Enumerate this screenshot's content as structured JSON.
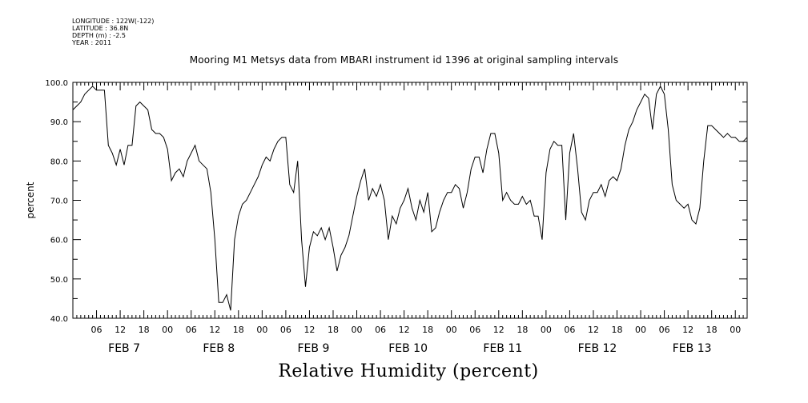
{
  "meta": {
    "longitude": "LONGITUDE : 122W(-122)",
    "latitude": "LATITUDE : 36.8N",
    "depth": "DEPTH (m) : -2.5",
    "year": "YEAR : 2011"
  },
  "chart_data": {
    "type": "line",
    "title": "Mooring M1 Metsys data from MBARI instrument id 1396 at original sampling intervals",
    "xlabel": "Relative Humidity (percent)",
    "ylabel": "percent",
    "ylim": [
      40,
      100
    ],
    "yticks": [
      40,
      50,
      60,
      70,
      80,
      90,
      100
    ],
    "xlim_hours": [
      0,
      171
    ],
    "hour_tick_labels": [
      "06",
      "12",
      "18",
      "00",
      "06",
      "12",
      "18",
      "00",
      "06",
      "12",
      "18",
      "00",
      "06",
      "12",
      "18",
      "00",
      "06",
      "12",
      "18",
      "00",
      "06",
      "12",
      "18",
      "00",
      "06",
      "12",
      "18",
      "00"
    ],
    "day_labels": [
      "FEB  7",
      "FEB  8",
      "FEB  9",
      "FEB 10",
      "FEB 11",
      "FEB 12",
      "FEB 13"
    ],
    "grid": false,
    "series": [
      {
        "color": "#000000",
        "x": [
          0,
          1,
          2,
          3,
          4,
          5,
          6,
          7,
          8,
          9,
          10,
          11,
          12,
          13,
          14,
          15,
          16,
          17,
          18,
          19,
          20,
          21,
          22,
          23,
          24,
          25,
          26,
          27,
          28,
          29,
          30,
          31,
          32,
          33,
          34,
          35,
          36,
          37,
          38,
          39,
          40,
          41,
          42,
          43,
          44,
          45,
          46,
          47,
          48,
          49,
          50,
          51,
          52,
          53,
          54,
          55,
          56,
          57,
          58,
          59,
          60,
          61,
          62,
          63,
          64,
          65,
          66,
          67,
          68,
          69,
          70,
          71,
          72,
          73,
          74,
          75,
          76,
          77,
          78,
          79,
          80,
          81,
          82,
          83,
          84,
          85,
          86,
          87,
          88,
          89,
          90,
          91,
          92,
          93,
          94,
          95,
          96,
          97,
          98,
          99,
          100,
          101,
          102,
          103,
          104,
          105,
          106,
          107,
          108,
          109,
          110,
          111,
          112,
          113,
          114,
          115,
          116,
          117,
          118,
          119,
          120,
          121,
          122,
          123,
          124,
          125,
          126,
          127,
          128,
          129,
          130,
          131,
          132,
          133,
          134,
          135,
          136,
          137,
          138,
          139,
          140,
          141,
          142,
          143,
          144,
          145,
          146,
          147,
          148,
          149,
          150,
          151,
          152,
          153,
          154,
          155,
          156,
          157,
          158,
          159,
          160,
          161,
          162,
          163,
          164,
          165,
          166,
          167,
          168,
          169,
          170,
          171
        ],
        "y": [
          93,
          94,
          95,
          97,
          98,
          99,
          98,
          98,
          98,
          84,
          82,
          79,
          83,
          79,
          84,
          84,
          94,
          95,
          94,
          93,
          88,
          87,
          87,
          86,
          83,
          75,
          77,
          78,
          76,
          80,
          82,
          84,
          80,
          79,
          78,
          72,
          60,
          44,
          44,
          46,
          42,
          60,
          66,
          69,
          70,
          72,
          74,
          76,
          79,
          81,
          80,
          83,
          85,
          86,
          86,
          74,
          72,
          80,
          60,
          48,
          58,
          62,
          61,
          63,
          60,
          63,
          58,
          52,
          56,
          58,
          61,
          66,
          71,
          75,
          78,
          70,
          73,
          71,
          74,
          70,
          60,
          66,
          64,
          68,
          70,
          73,
          68,
          65,
          70,
          67,
          72,
          62,
          63,
          67,
          70,
          72,
          72,
          74,
          73,
          68,
          72,
          78,
          81,
          81,
          77,
          83,
          87,
          87,
          82,
          70,
          72,
          70,
          69,
          69,
          71,
          69,
          70,
          66,
          66,
          60,
          77,
          83,
          85,
          84,
          84,
          65,
          82,
          87,
          78,
          67,
          65,
          70,
          72,
          72,
          74,
          71,
          75,
          76,
          75,
          78,
          84,
          88,
          90,
          93,
          95,
          97,
          96,
          88,
          97,
          99,
          97,
          88,
          74,
          70,
          69,
          68,
          69,
          65,
          64,
          68,
          80,
          89,
          89,
          88,
          87,
          86,
          87,
          86,
          86,
          85,
          85,
          86
        ]
      }
    ]
  }
}
